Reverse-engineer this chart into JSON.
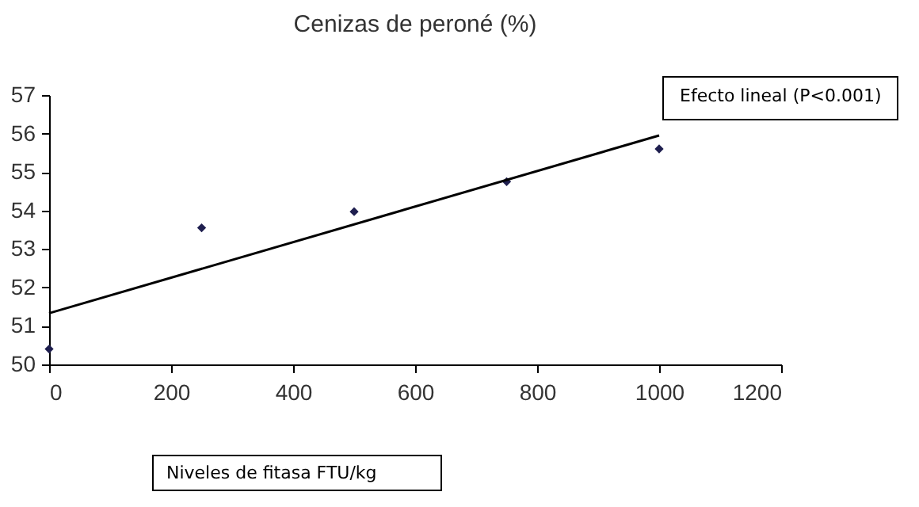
{
  "chart_data": {
    "type": "scatter",
    "title": "Cenizas de peroné (%)",
    "xlabel": "Niveles de fitasa  FTU/kg",
    "annotations": [
      "Efecto lineal (P<0.001)"
    ],
    "x": [
      0,
      250,
      500,
      750,
      1000
    ],
    "xlim": [
      0,
      1200
    ],
    "xticks": [
      0,
      200,
      400,
      600,
      800,
      1000,
      1200
    ],
    "ylim": [
      50,
      57
    ],
    "yticks": [
      50,
      51,
      52,
      53,
      54,
      55,
      56,
      57
    ],
    "grid": false,
    "series": [
      {
        "marker": "diamond",
        "color": "#1f1f4f",
        "values": [
          50.4,
          53.55,
          53.97,
          54.75,
          55.6
        ]
      },
      {
        "type": "line",
        "color": "#000000",
        "x": [
          0,
          1000
        ],
        "values": [
          51.33,
          55.95
        ]
      }
    ]
  }
}
